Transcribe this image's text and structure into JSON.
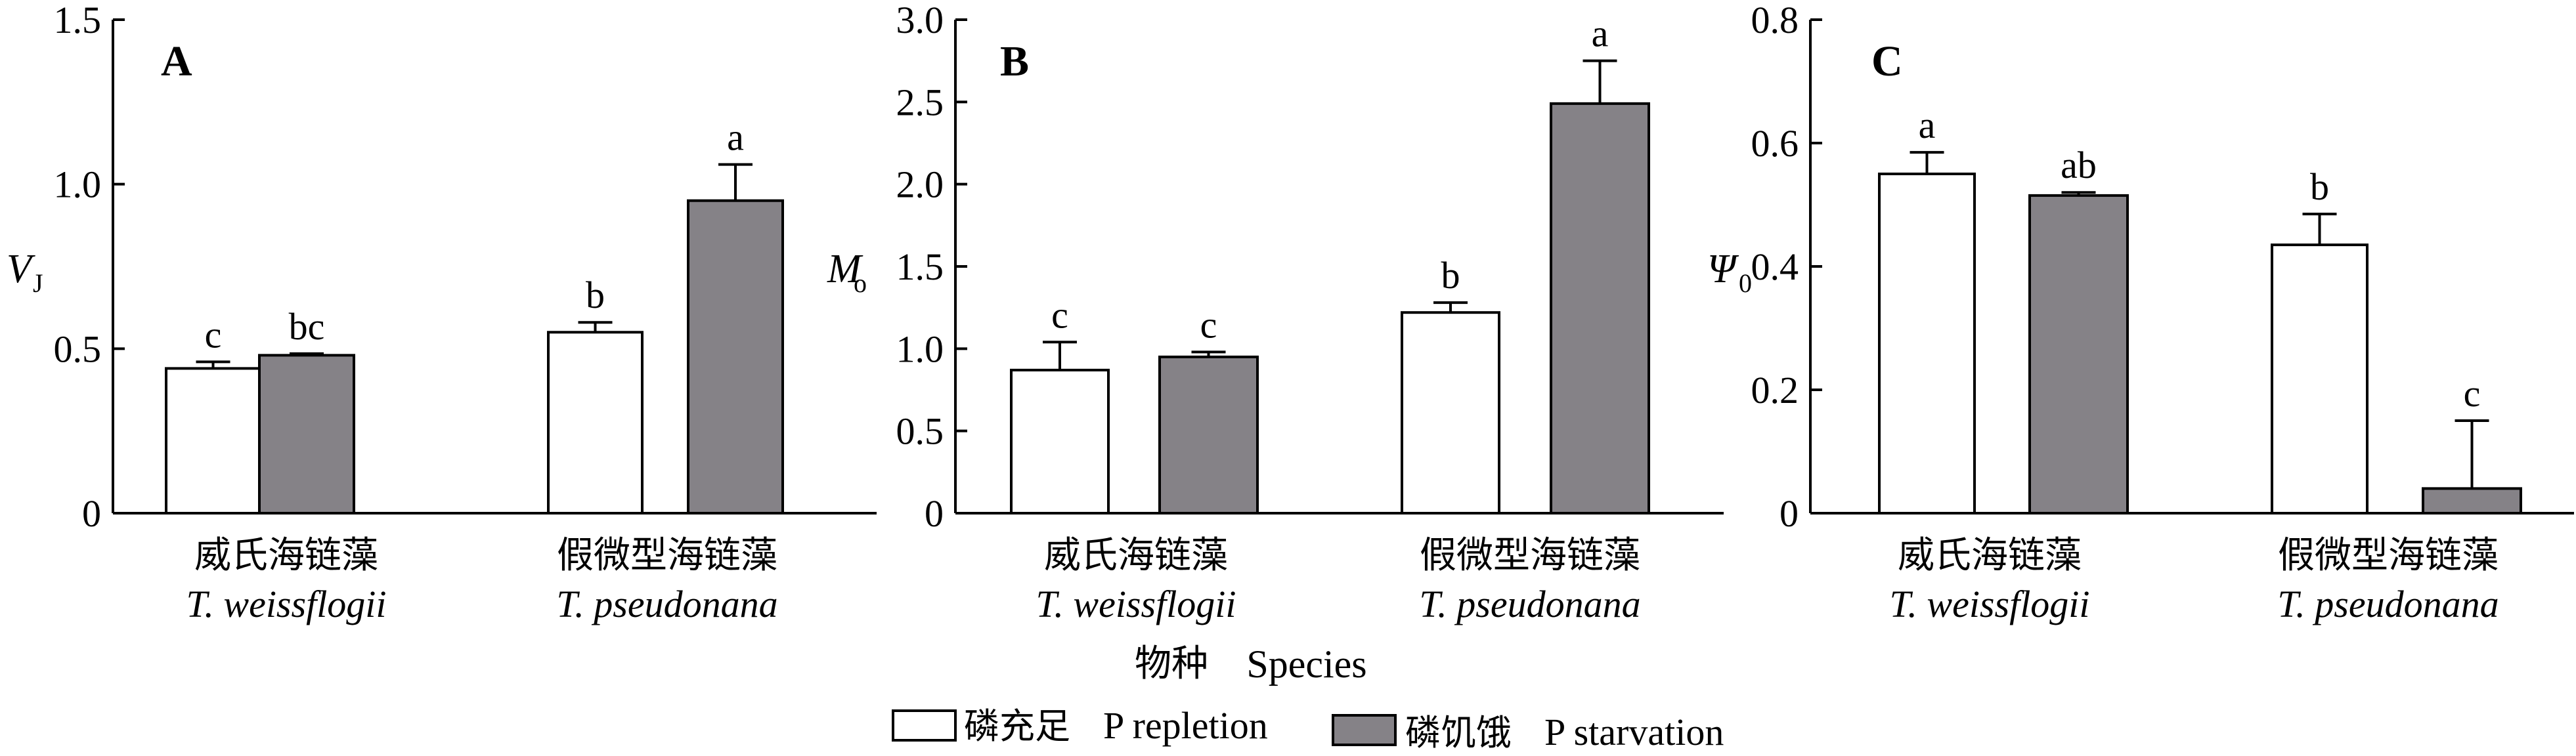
{
  "chart_data": [
    {
      "type": "bar",
      "panel_label": "A",
      "ylabel": "V",
      "ylabel_sub": "J",
      "ylim": [
        0,
        1.5
      ],
      "yticks": [
        0,
        0.5,
        1.0,
        1.5
      ],
      "ytick_labels": [
        "0",
        "0.5",
        "1.0",
        "1.5"
      ],
      "categories": [
        {
          "cn": "威氏海链藻",
          "en": "T. weissflogii"
        },
        {
          "cn": "假微型海链藻",
          "en": "T. pseudonana"
        }
      ],
      "series": [
        {
          "name": "磷充足 P repletion",
          "values": [
            0.44,
            0.55
          ],
          "errors": [
            0.02,
            0.03
          ],
          "labels": [
            "c",
            "b"
          ]
        },
        {
          "name": "磷饥饿 P starvation",
          "values": [
            0.48,
            0.95
          ],
          "errors": [
            0.005,
            0.11
          ],
          "labels": [
            "bc",
            "a"
          ]
        }
      ]
    },
    {
      "type": "bar",
      "panel_label": "B",
      "ylabel": "M",
      "ylabel_sub": "o",
      "ylim": [
        0,
        3.0
      ],
      "yticks": [
        0,
        0.5,
        1.0,
        1.5,
        2.0,
        2.5,
        3.0
      ],
      "ytick_labels": [
        "0",
        "0.5",
        "1.0",
        "1.5",
        "2.0",
        "2.5",
        "3.0"
      ],
      "categories": [
        {
          "cn": "威氏海链藻",
          "en": "T. weissflogii"
        },
        {
          "cn": "假微型海链藻",
          "en": "T. pseudonana"
        }
      ],
      "series": [
        {
          "name": "磷充足 P repletion",
          "values": [
            0.87,
            1.22
          ],
          "errors": [
            0.17,
            0.06
          ],
          "labels": [
            "c",
            "b"
          ]
        },
        {
          "name": "磷饥饿 P starvation",
          "values": [
            0.95,
            2.49
          ],
          "errors": [
            0.03,
            0.26
          ],
          "labels": [
            "c",
            "a"
          ]
        }
      ]
    },
    {
      "type": "bar",
      "panel_label": "C",
      "ylabel": "Ψ",
      "ylabel_sub": "0",
      "ylim": [
        0,
        0.8
      ],
      "yticks": [
        0,
        0.2,
        0.4,
        0.6,
        0.8
      ],
      "ytick_labels": [
        "0",
        "0.2",
        "0.4",
        "0.6",
        "0.8"
      ],
      "categories": [
        {
          "cn": "威氏海链藻",
          "en": "T. weissflogii"
        },
        {
          "cn": "假微型海链藻",
          "en": "T. pseudonana"
        }
      ],
      "series": [
        {
          "name": "磷充足 P repletion",
          "values": [
            0.55,
            0.435
          ],
          "errors": [
            0.035,
            0.05
          ],
          "labels": [
            "a",
            "b"
          ]
        },
        {
          "name": "磷饥饿 P starvation",
          "values": [
            0.515,
            0.04
          ],
          "errors": [
            0.005,
            0.11
          ],
          "labels": [
            "ab",
            "c"
          ]
        }
      ]
    }
  ],
  "xlabel": {
    "cn": "物种",
    "en": "Species"
  },
  "legend": [
    {
      "cn": "磷充足",
      "en": "P repletion",
      "color": "#ffffff"
    },
    {
      "cn": "磷饥饿",
      "en": "P starvation",
      "color": "#858287"
    }
  ],
  "colors": {
    "repletion": "#ffffff",
    "starvation": "#858287",
    "axis": "#000000"
  }
}
